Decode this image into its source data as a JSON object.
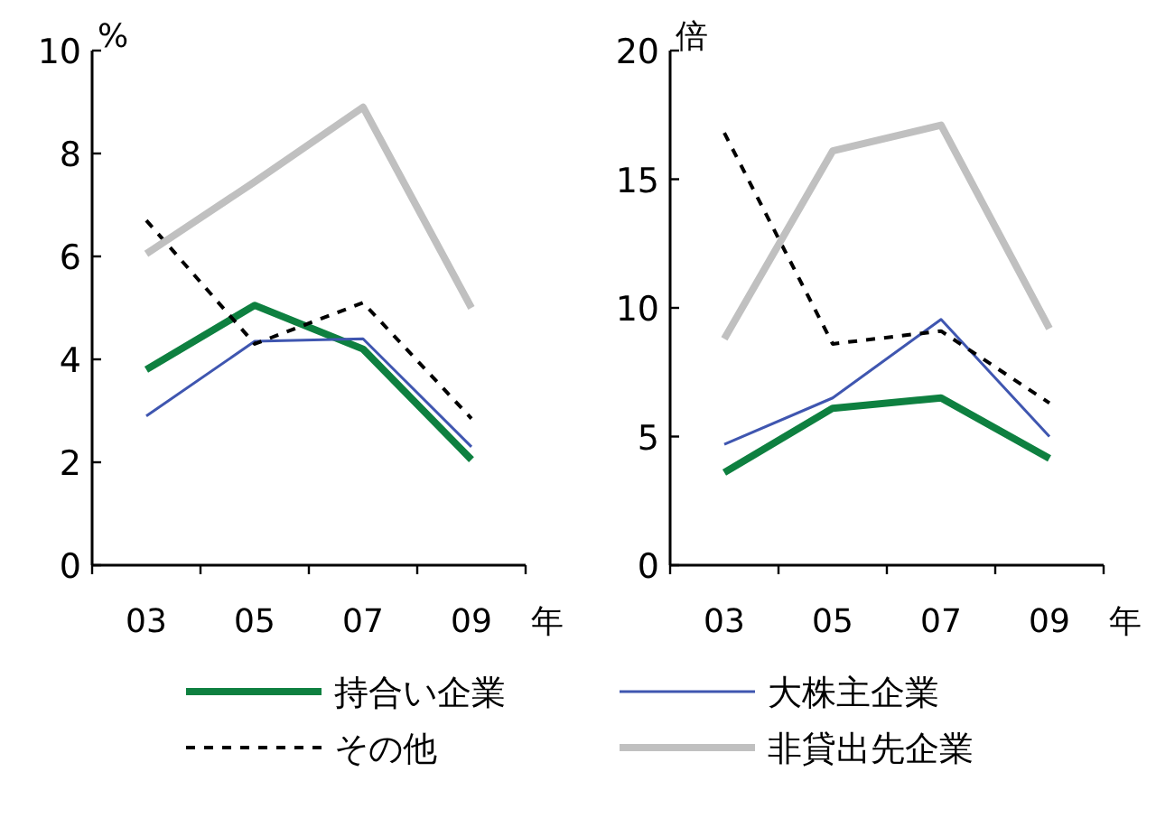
{
  "chart_data": [
    {
      "type": "line",
      "categories": [
        "03",
        "05",
        "07",
        "09"
      ],
      "xlabel": "年",
      "ylabel": "%",
      "ylim": [
        0,
        10
      ],
      "yticks": [
        0,
        2,
        4,
        6,
        8,
        10
      ],
      "legend": "bottom",
      "marker": "none",
      "series": [
        {
          "name": "持合い企業",
          "color": "#0e8040",
          "values": [
            3.8,
            5.05,
            4.2,
            2.05
          ]
        },
        {
          "name": "大株主企業",
          "color": "#3f56b0",
          "values": [
            2.9,
            4.35,
            4.4,
            2.3
          ]
        },
        {
          "name": "その他",
          "color": "#000000",
          "line_style": "dashed",
          "values": [
            6.7,
            4.3,
            5.1,
            2.85
          ]
        },
        {
          "name": "非貸出先企業",
          "color": "#c0c0c0",
          "values": [
            6.05,
            7.45,
            8.9,
            5.0
          ]
        }
      ]
    },
    {
      "type": "line",
      "categories": [
        "03",
        "05",
        "07",
        "09"
      ],
      "xlabel": "年",
      "ylabel": "倍",
      "ylim": [
        0,
        20
      ],
      "yticks": [
        0,
        5,
        10,
        15,
        20
      ],
      "marker": "none",
      "series": [
        {
          "color": "#0e8040",
          "values": [
            3.6,
            6.1,
            6.5,
            4.15
          ]
        },
        {
          "color": "#3f56b0",
          "values": [
            4.7,
            6.5,
            9.55,
            5.0
          ]
        },
        {
          "color": "#000000",
          "line_style": "dashed",
          "values": [
            16.8,
            8.6,
            9.1,
            6.3
          ]
        },
        {
          "color": "#c0c0c0",
          "values": [
            8.8,
            16.1,
            17.1,
            9.2
          ]
        }
      ]
    }
  ]
}
